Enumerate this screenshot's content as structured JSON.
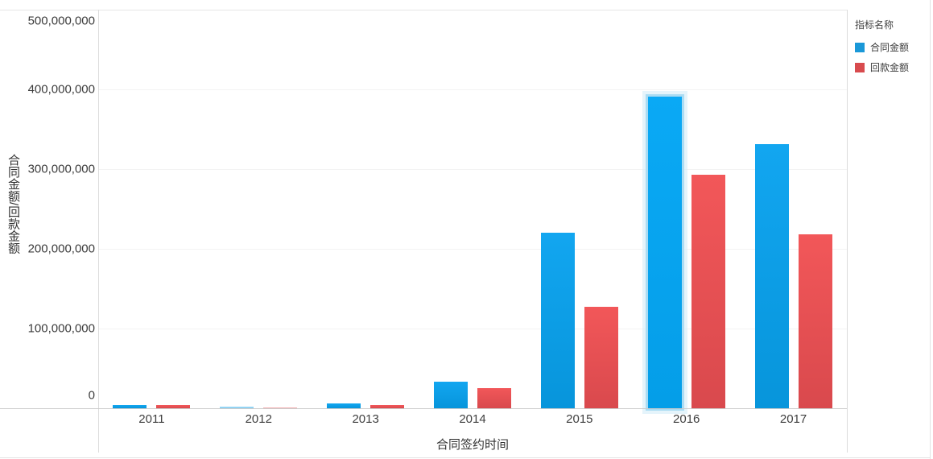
{
  "legend": {
    "title": "指标名称",
    "items": [
      {
        "key": "contract-amount",
        "label": "合同金额",
        "color": "#1a98d8"
      },
      {
        "key": "payment-amount",
        "label": "回款金额",
        "color": "#d84b4e"
      }
    ]
  },
  "colors": {
    "contract_bar": "#0a9fe9",
    "payment_bar": "#ec5153",
    "selected_halo": "#a8daf2",
    "gridline": "#f3f3f3",
    "axis_line": "#cccccc"
  },
  "chart_data": {
    "type": "bar",
    "title": "",
    "xlabel": "合同签约时间",
    "ylabel": "合同金额/回款金额",
    "categories": [
      "2011",
      "2012",
      "2013",
      "2014",
      "2015",
      "2016",
      "2017"
    ],
    "series": [
      {
        "name": "合同金额",
        "key": "contract-amount",
        "values": [
          4500000,
          1800000,
          6500000,
          33000000,
          220000000,
          391000000,
          331000000
        ]
      },
      {
        "name": "回款金额",
        "key": "payment-amount",
        "values": [
          3800000,
          1500000,
          4200000,
          25500000,
          127000000,
          293000000,
          218000000
        ]
      }
    ],
    "ylim": [
      0,
      500000000
    ],
    "y_tick_values": [
      0,
      100000000,
      200000000,
      300000000,
      400000000,
      500000000
    ],
    "y_tick_labels": [
      "0",
      "100,000,000",
      "200,000,000",
      "300,000,000",
      "400,000,000",
      "500,000,000"
    ],
    "grid": true,
    "legend_position": "right",
    "selected": {
      "series": "合同金额",
      "category": "2016"
    }
  }
}
